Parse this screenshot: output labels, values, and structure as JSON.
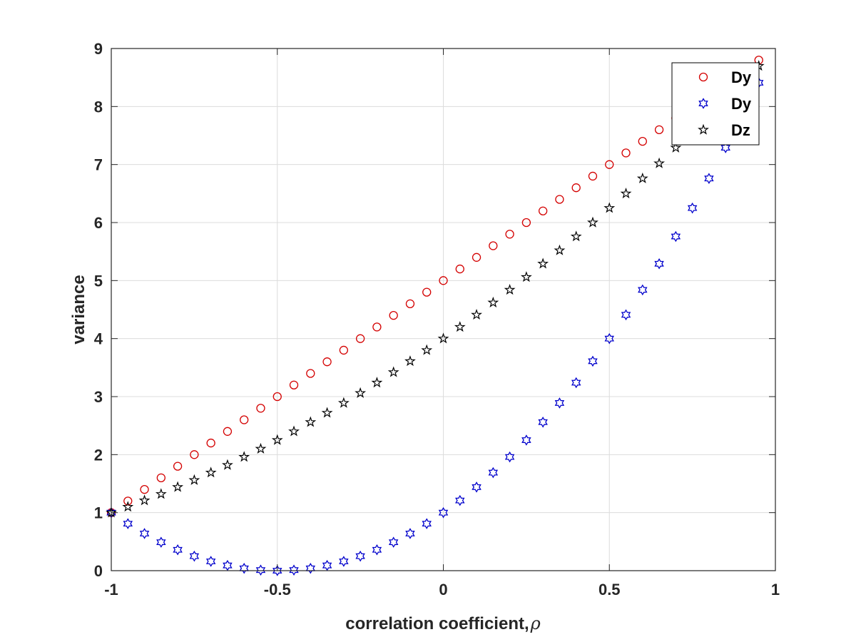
{
  "chart_data": {
    "type": "scatter",
    "title": "",
    "xlabel": "correlation coefficient,",
    "xlabel_symbol": "ρ",
    "ylabel": "variance",
    "xlim": [
      -1,
      1
    ],
    "ylim": [
      0,
      9
    ],
    "xticks": [
      -1,
      -0.5,
      0,
      0.5,
      1
    ],
    "xtick_labels": [
      "-1",
      "-0.5",
      "0",
      "0.5",
      "1"
    ],
    "yticks": [
      0,
      1,
      2,
      3,
      4,
      5,
      6,
      7,
      8,
      9
    ],
    "ytick_labels": [
      "0",
      "1",
      "2",
      "3",
      "4",
      "5",
      "6",
      "7",
      "8",
      "9"
    ],
    "grid": true,
    "legend_position": "top-right",
    "x": [
      -1,
      -0.95,
      -0.9,
      -0.85,
      -0.8,
      -0.75,
      -0.7,
      -0.65,
      -0.6,
      -0.55,
      -0.5,
      -0.45,
      -0.4,
      -0.35,
      -0.3,
      -0.25,
      -0.2,
      -0.15,
      -0.1,
      -0.05,
      0,
      0.05,
      0.1,
      0.15,
      0.2,
      0.25,
      0.3,
      0.35,
      0.4,
      0.45,
      0.5,
      0.55,
      0.6,
      0.65,
      0.7,
      0.75,
      0.8,
      0.85,
      0.9,
      0.95
    ],
    "series": [
      {
        "name": "Dy",
        "marker": "circle",
        "color": "#d40000",
        "values": [
          1,
          1.2,
          1.4,
          1.6,
          1.8,
          2,
          2.2,
          2.4,
          2.6,
          2.8,
          3,
          3.2,
          3.4,
          3.6,
          3.8,
          4,
          4.2,
          4.4,
          4.6,
          4.8,
          5,
          5.2,
          5.4,
          5.6,
          5.8,
          6,
          6.2,
          6.4,
          6.6,
          6.8,
          7,
          7.2,
          7.4,
          7.6,
          7.8,
          8,
          8.2,
          8.4,
          8.6,
          8.8
        ]
      },
      {
        "name": "Dy",
        "marker": "hexagram",
        "color": "#0000cc",
        "values": [
          1,
          0.81,
          0.64,
          0.49,
          0.36,
          0.25,
          0.16,
          0.09,
          0.04,
          0.01,
          0,
          0.01,
          0.04,
          0.09,
          0.16,
          0.25,
          0.36,
          0.49,
          0.64,
          0.81,
          1,
          1.21,
          1.44,
          1.69,
          1.96,
          2.25,
          2.56,
          2.89,
          3.24,
          3.61,
          4,
          4.41,
          4.84,
          5.29,
          5.76,
          6.25,
          6.76,
          7.29,
          7.84,
          8.41
        ]
      },
      {
        "name": "Dz",
        "marker": "pentagram",
        "color": "#000000",
        "values": [
          1,
          1.1,
          1.21,
          1.32,
          1.44,
          1.56,
          1.69,
          1.82,
          1.96,
          2.1,
          2.25,
          2.4,
          2.56,
          2.72,
          2.89,
          3.06,
          3.24,
          3.42,
          3.61,
          3.8,
          4,
          4.2,
          4.41,
          4.62,
          4.84,
          5.06,
          5.29,
          5.52,
          5.76,
          6,
          6.25,
          6.5,
          6.76,
          7.02,
          7.29,
          7.56,
          7.84,
          8.12,
          8.41,
          8.7
        ]
      }
    ]
  }
}
